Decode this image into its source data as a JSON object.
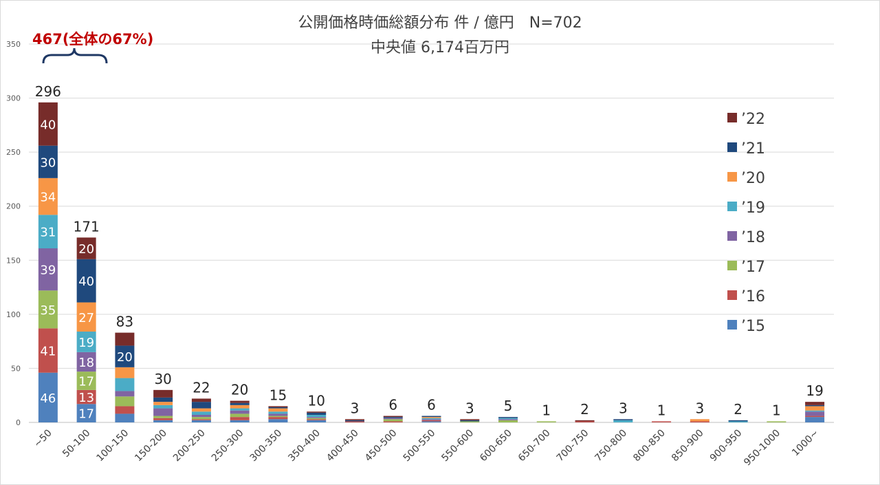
{
  "chart_data": {
    "type": "bar",
    "stacked": true,
    "title": "公開価格時価総額分布 件 / 億円　N=702",
    "subtitle": "中央値 6,174百万円",
    "callout": "467(全体の67%)",
    "ylim": [
      0,
      350
    ],
    "yticks": [
      0,
      50,
      100,
      150,
      200,
      250,
      300,
      350
    ],
    "grid": true,
    "legend_position": "right",
    "categories": [
      "~50",
      "50-100",
      "100-150",
      "150-200",
      "200-250",
      "250-300",
      "300-350",
      "350-400",
      "400-450",
      "450-500",
      "500-550",
      "550-600",
      "600-650",
      "650-700",
      "700-750",
      "750-800",
      "800-850",
      "850-900",
      "900-950",
      "950-1000",
      "1000~"
    ],
    "totals": [
      296,
      171,
      83,
      30,
      22,
      20,
      15,
      10,
      3,
      6,
      6,
      3,
      5,
      1,
      2,
      3,
      1,
      3,
      2,
      1,
      19
    ],
    "series": [
      {
        "name": "’15",
        "color": "#4f81bd",
        "values": [
          46,
          17,
          8,
          2,
          2,
          2,
          3,
          2,
          0,
          0,
          1,
          0,
          0,
          0,
          0,
          0,
          0,
          0,
          0,
          0,
          5
        ]
      },
      {
        "name": "’16",
        "color": "#c0504d",
        "values": [
          41,
          13,
          7,
          2,
          1,
          3,
          2,
          1,
          1,
          1,
          1,
          0,
          0,
          0,
          1,
          0,
          1,
          1,
          0,
          0,
          1
        ]
      },
      {
        "name": "’17",
        "color": "#9bbb59",
        "values": [
          35,
          17,
          9,
          2,
          2,
          3,
          1,
          1,
          0,
          2,
          0,
          1,
          2,
          1,
          0,
          0,
          0,
          0,
          0,
          1,
          0
        ]
      },
      {
        "name": "’18",
        "color": "#8064a2",
        "values": [
          39,
          18,
          5,
          7,
          2,
          3,
          2,
          1,
          0,
          1,
          1,
          0,
          1,
          0,
          0,
          0,
          0,
          0,
          0,
          0,
          4
        ]
      },
      {
        "name": "’19",
        "color": "#4bacc6",
        "values": [
          31,
          19,
          12,
          3,
          3,
          2,
          2,
          2,
          0,
          0,
          1,
          0,
          1,
          0,
          0,
          2,
          0,
          0,
          1,
          0,
          1
        ]
      },
      {
        "name": "’20",
        "color": "#f79646",
        "values": [
          34,
          27,
          10,
          3,
          3,
          3,
          3,
          0,
          0,
          0,
          1,
          0,
          0,
          0,
          0,
          0,
          0,
          2,
          0,
          0,
          4
        ]
      },
      {
        "name": "’21",
        "color": "#1f497d",
        "values": [
          30,
          40,
          20,
          4,
          6,
          2,
          1,
          2,
          1,
          1,
          1,
          1,
          1,
          0,
          0,
          1,
          0,
          0,
          1,
          0,
          1
        ]
      },
      {
        "name": "’22",
        "color": "#772c2a",
        "values": [
          40,
          20,
          12,
          7,
          3,
          2,
          1,
          1,
          1,
          1,
          0,
          1,
          0,
          0,
          1,
          0,
          0,
          0,
          0,
          0,
          3
        ]
      }
    ],
    "label_min": 13
  },
  "colors": {
    "callout": "#c00000",
    "brace": "#1f3864",
    "grid": "#d9d9d9",
    "text": "#404040"
  }
}
